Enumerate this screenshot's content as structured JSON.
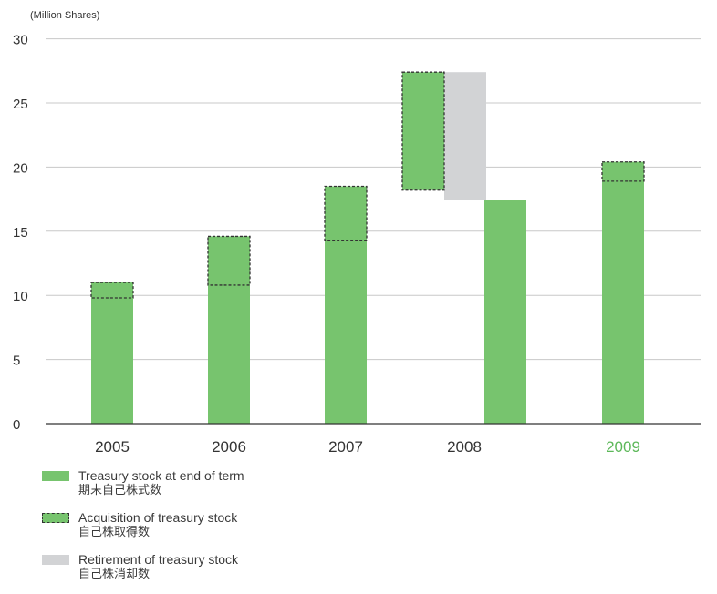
{
  "chart_data": {
    "type": "bar",
    "unit_label": "(Million Shares)",
    "categories": [
      "2005",
      "2006",
      "2007",
      "2008",
      "2009"
    ],
    "highlight_category": "2009",
    "y_ticks": [
      0,
      5,
      10,
      15,
      20,
      25,
      30
    ],
    "ylim": [
      0,
      30
    ],
    "grid": true,
    "series": [
      {
        "name": "Treasury stock at end of term",
        "values": [
          11,
          14.6,
          18.5,
          17.4,
          20.4
        ]
      },
      {
        "name": "Acquisition of treasury stock",
        "values": [
          1.2,
          3.8,
          4.2,
          9.2,
          1.5
        ]
      },
      {
        "name": "Retirement of treasury stock",
        "values": [
          0,
          0,
          0,
          10,
          0
        ]
      }
    ],
    "acquisition_ranges": [
      [
        9.8,
        11
      ],
      [
        10.8,
        14.6
      ],
      [
        14.3,
        18.5
      ],
      [
        18.2,
        27.4
      ],
      [
        18.9,
        20.4
      ]
    ],
    "retirement_ranges": [
      null,
      null,
      null,
      [
        17.4,
        27.4
      ],
      null
    ],
    "colors": {
      "end_of_term": "#77c46e",
      "retirement": "#d2d3d5",
      "grid": "#c8c8c8",
      "axis": "#333333",
      "highlight_label": "#5db85a"
    }
  },
  "legend": [
    {
      "label": "Treasury stock at end of term",
      "label_jp": "期末自己株式数"
    },
    {
      "label": "Acquisition of treasury stock",
      "label_jp": "自己株取得数"
    },
    {
      "label": "Retirement of treasury stock",
      "label_jp": "自己株消却数"
    }
  ]
}
